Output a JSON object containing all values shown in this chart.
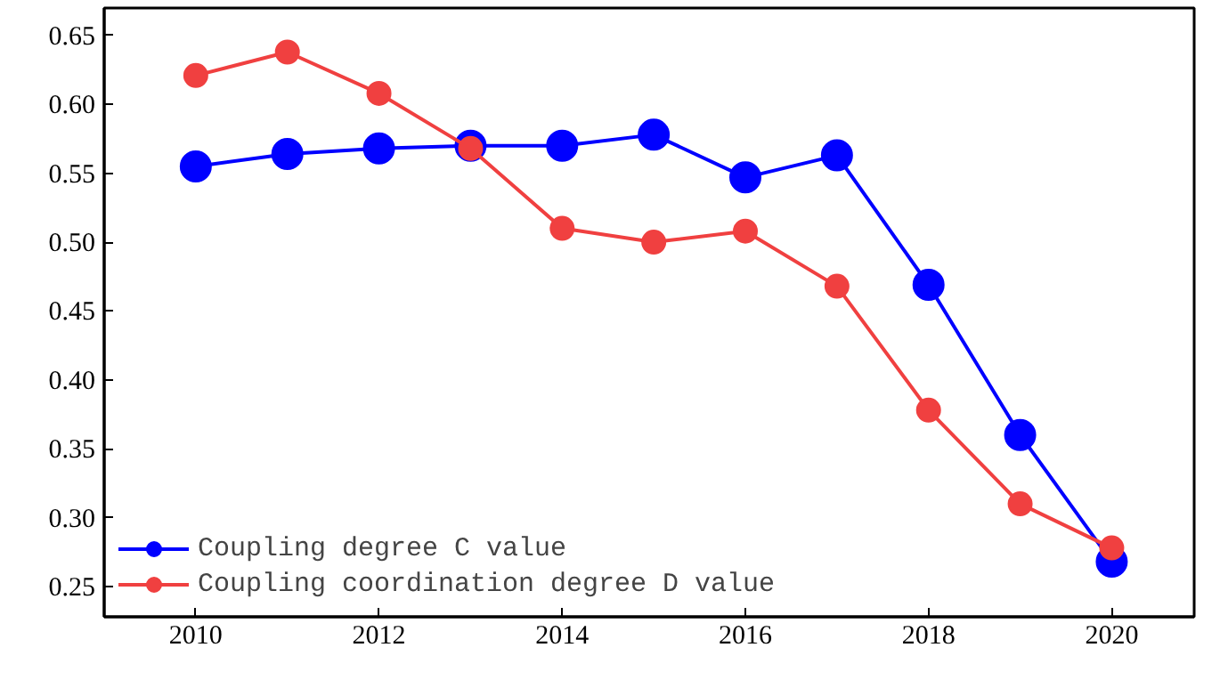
{
  "chart_data": {
    "type": "line",
    "x": [
      2010,
      2011,
      2012,
      2013,
      2014,
      2015,
      2016,
      2017,
      2018,
      2019,
      2020
    ],
    "series": [
      {
        "name": "Coupling degree C value",
        "color": "#0000ff",
        "values": [
          0.555,
          0.564,
          0.568,
          0.57,
          0.57,
          0.578,
          0.547,
          0.563,
          0.469,
          0.36,
          0.268
        ]
      },
      {
        "name": "Coupling coordination degree D value",
        "color": "#f04040",
        "values": [
          0.621,
          0.638,
          0.608,
          0.568,
          0.51,
          0.5,
          0.508,
          0.468,
          0.378,
          0.31,
          0.278
        ]
      }
    ],
    "xlim": [
      2009,
      2020.9
    ],
    "ylim": [
      0.228,
      0.67
    ],
    "xticks": [
      2010,
      2012,
      2014,
      2016,
      2018,
      2020
    ],
    "yticks": [
      {
        "value": 0.25,
        "label": "0.25"
      },
      {
        "value": 0.3,
        "label": "0.30"
      },
      {
        "value": 0.35,
        "label": "0.35"
      },
      {
        "value": 0.4,
        "label": "0.40"
      },
      {
        "value": 0.45,
        "label": "0.45"
      },
      {
        "value": 0.5,
        "label": "0.50"
      },
      {
        "value": 0.55,
        "label": "0.55"
      },
      {
        "value": 0.6,
        "label": "0.60"
      },
      {
        "value": 0.65,
        "label": "0.65"
      }
    ],
    "marker": "circle",
    "line_style": "solid",
    "grid": false,
    "legend": "bottom left"
  }
}
